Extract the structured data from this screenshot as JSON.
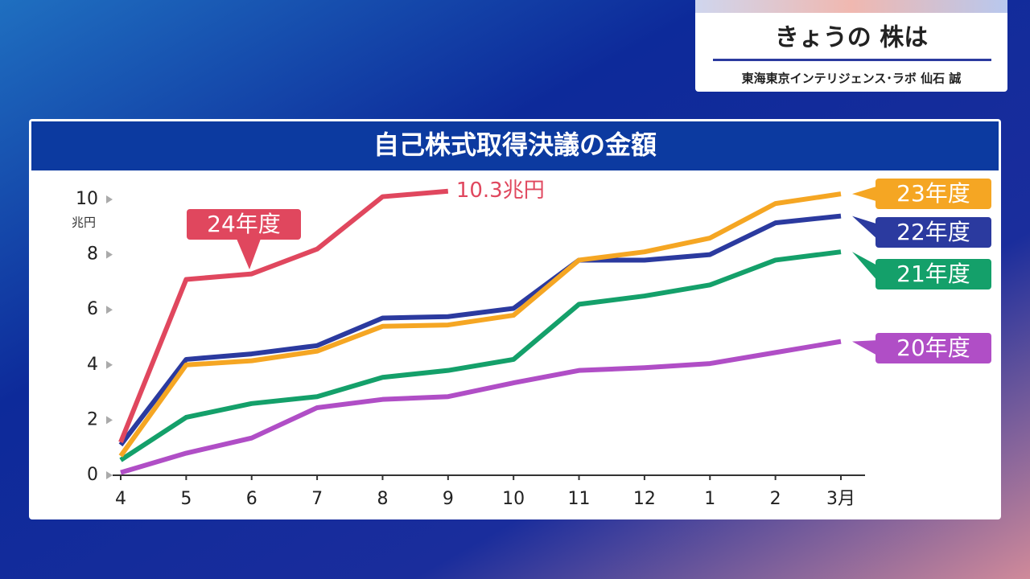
{
  "header": {
    "title": "きょうの 株は",
    "subtitle": "東海東京インテリジェンス･ラボ 仙石 誠"
  },
  "chart_data": {
    "type": "line",
    "title": "自己株式取得決議の金額",
    "y_label": "兆円",
    "categories": [
      "4",
      "5",
      "6",
      "7",
      "8",
      "9",
      "10",
      "11",
      "12",
      "1",
      "2",
      "3月"
    ],
    "ylim": [
      0,
      10
    ],
    "yticks": [
      0,
      2,
      4,
      6,
      8,
      10
    ],
    "series": [
      {
        "name": "24年度",
        "color": "#e0475e",
        "values": [
          1.2,
          7.1,
          7.3,
          8.2,
          10.1,
          10.3,
          null,
          null,
          null,
          null,
          null,
          null
        ],
        "value_labels": [
          null,
          null,
          null,
          null,
          null,
          "10.3兆円",
          null,
          null,
          null,
          null,
          null,
          null
        ]
      },
      {
        "name": "23年度",
        "color": "#f5a623",
        "values": [
          0.7,
          4.0,
          4.15,
          4.5,
          5.4,
          5.45,
          5.8,
          7.8,
          8.1,
          8.6,
          9.85,
          10.2
        ]
      },
      {
        "name": "22年度",
        "color": "#2b3a9f",
        "values": [
          1.1,
          4.2,
          4.4,
          4.7,
          5.7,
          5.75,
          6.05,
          7.8,
          7.8,
          8.0,
          9.15,
          9.4
        ]
      },
      {
        "name": "21年度",
        "color": "#14a06a",
        "values": [
          0.55,
          2.1,
          2.6,
          2.85,
          3.55,
          3.8,
          4.2,
          6.2,
          6.5,
          6.9,
          7.8,
          8.1
        ]
      },
      {
        "name": "20年度",
        "color": "#b04ec6",
        "values": [
          0.1,
          0.8,
          1.35,
          2.45,
          2.75,
          2.85,
          3.35,
          3.8,
          3.9,
          4.05,
          4.45,
          4.85
        ]
      }
    ]
  }
}
